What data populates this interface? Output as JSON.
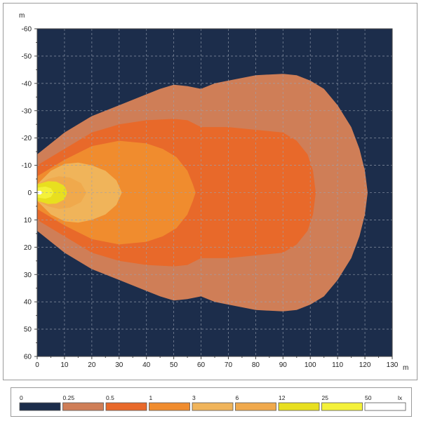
{
  "chart_data": {
    "type": "heatmap",
    "title": "",
    "x_unit": "m",
    "y_unit": "m",
    "xlim": [
      0,
      130
    ],
    "ylim": [
      -60,
      60
    ],
    "x_ticks": [
      0,
      10,
      20,
      30,
      40,
      50,
      60,
      70,
      80,
      90,
      100,
      110,
      120,
      130
    ],
    "y_ticks": [
      -60,
      -50,
      -40,
      -30,
      -20,
      -10,
      0,
      10,
      20,
      30,
      40,
      50,
      60
    ],
    "grid": true,
    "background_color": "#1c2d4b",
    "gridline_color": "#9aa3b2",
    "legend": {
      "unit": "lx",
      "thresholds": [
        "0",
        "0.25",
        "0.5",
        "1",
        "3",
        "6",
        "12",
        "25",
        "50"
      ],
      "colors": [
        "#1c2d4b",
        "#cf7e57",
        "#e8692a",
        "#f08c2e",
        "#f0b45a",
        "#f0a94c",
        "#e8df1f",
        "#f4f13a",
        "#ffffff"
      ]
    },
    "isolux_zones": [
      {
        "min_lux": 0.25,
        "color": "#cf7e57",
        "outline": [
          [
            0,
            -14
          ],
          [
            10,
            -22
          ],
          [
            20,
            -28
          ],
          [
            30,
            -32
          ],
          [
            40,
            -36
          ],
          [
            45,
            -38
          ],
          [
            50,
            -39.5
          ],
          [
            55,
            -39
          ],
          [
            60,
            -38
          ],
          [
            65,
            -40
          ],
          [
            70,
            -41
          ],
          [
            80,
            -43
          ],
          [
            90,
            -43.5
          ],
          [
            95,
            -43
          ],
          [
            100,
            -41
          ],
          [
            105,
            -38
          ],
          [
            110,
            -32
          ],
          [
            115,
            -24
          ],
          [
            118,
            -16
          ],
          [
            120,
            -8
          ],
          [
            121,
            0
          ],
          [
            120,
            8
          ],
          [
            118,
            16
          ],
          [
            115,
            24
          ],
          [
            110,
            32
          ],
          [
            105,
            38
          ],
          [
            100,
            41
          ],
          [
            95,
            43
          ],
          [
            90,
            43.5
          ],
          [
            80,
            43
          ],
          [
            70,
            41
          ],
          [
            65,
            40
          ],
          [
            60,
            38
          ],
          [
            55,
            39
          ],
          [
            50,
            39.5
          ],
          [
            45,
            38
          ],
          [
            40,
            36
          ],
          [
            30,
            32
          ],
          [
            20,
            28
          ],
          [
            10,
            22
          ],
          [
            0,
            14
          ]
        ]
      },
      {
        "min_lux": 0.5,
        "color": "#e8692a",
        "outline": [
          [
            0,
            -10
          ],
          [
            10,
            -16
          ],
          [
            20,
            -22
          ],
          [
            30,
            -25
          ],
          [
            40,
            -26.5
          ],
          [
            50,
            -27
          ],
          [
            55,
            -26.5
          ],
          [
            60,
            -24
          ],
          [
            70,
            -24
          ],
          [
            80,
            -23
          ],
          [
            90,
            -22
          ],
          [
            95,
            -19
          ],
          [
            99,
            -14
          ],
          [
            101,
            -8
          ],
          [
            102,
            0
          ],
          [
            101,
            8
          ],
          [
            99,
            14
          ],
          [
            95,
            19
          ],
          [
            90,
            22
          ],
          [
            80,
            23
          ],
          [
            70,
            24
          ],
          [
            60,
            24
          ],
          [
            55,
            26.5
          ],
          [
            50,
            27
          ],
          [
            40,
            26.5
          ],
          [
            30,
            25
          ],
          [
            20,
            22
          ],
          [
            10,
            16
          ],
          [
            0,
            10
          ]
        ]
      },
      {
        "min_lux": 1,
        "color": "#f08c2e",
        "outline": [
          [
            0,
            -6
          ],
          [
            10,
            -12
          ],
          [
            20,
            -17
          ],
          [
            30,
            -19
          ],
          [
            40,
            -18
          ],
          [
            46,
            -16
          ],
          [
            51,
            -13
          ],
          [
            55,
            -8
          ],
          [
            57,
            -3
          ],
          [
            58,
            0
          ],
          [
            57,
            3
          ],
          [
            55,
            8
          ],
          [
            51,
            13
          ],
          [
            46,
            16
          ],
          [
            40,
            18
          ],
          [
            30,
            19
          ],
          [
            20,
            17
          ],
          [
            10,
            12
          ],
          [
            0,
            6
          ]
        ]
      },
      {
        "min_lux": 3,
        "color": "#f0b45a",
        "outline": [
          [
            0,
            -3
          ],
          [
            5,
            -8
          ],
          [
            10,
            -10.5
          ],
          [
            15,
            -11
          ],
          [
            20,
            -10
          ],
          [
            25,
            -8
          ],
          [
            29,
            -4.5
          ],
          [
            31,
            0
          ],
          [
            29,
            4.5
          ],
          [
            25,
            8
          ],
          [
            20,
            10
          ],
          [
            15,
            11
          ],
          [
            10,
            10.5
          ],
          [
            5,
            8
          ],
          [
            0,
            3
          ]
        ]
      },
      {
        "min_lux": 6,
        "color": "#f0a94c",
        "outline": [
          [
            0,
            -3
          ],
          [
            4,
            -5
          ],
          [
            8,
            -6
          ],
          [
            12,
            -5.5
          ],
          [
            16,
            -3.5
          ],
          [
            18,
            0
          ],
          [
            16,
            3.5
          ],
          [
            12,
            5.5
          ],
          [
            8,
            6
          ],
          [
            4,
            5
          ],
          [
            0,
            3
          ]
        ]
      },
      {
        "min_lux": 12,
        "color": "#e8df1f",
        "outline": [
          [
            0,
            -3
          ],
          [
            4,
            -4.2
          ],
          [
            7,
            -4
          ],
          [
            10,
            -2.5
          ],
          [
            11,
            0
          ],
          [
            10,
            2.5
          ],
          [
            7,
            4
          ],
          [
            4,
            4.2
          ],
          [
            0,
            3
          ]
        ]
      },
      {
        "min_lux": 25,
        "color": "#f4f13a",
        "outline": [
          [
            0,
            -1.8
          ],
          [
            3,
            -2.2
          ],
          [
            5,
            -1.6
          ],
          [
            6,
            0
          ],
          [
            5,
            1.6
          ],
          [
            3,
            2.2
          ],
          [
            0,
            1.8
          ]
        ]
      },
      {
        "min_lux": 50,
        "color": "#ffffff",
        "outline": [
          [
            0,
            -0.6
          ],
          [
            1.2,
            -0.7
          ],
          [
            2,
            0
          ],
          [
            1.2,
            0.7
          ],
          [
            0,
            0.6
          ]
        ]
      }
    ]
  }
}
